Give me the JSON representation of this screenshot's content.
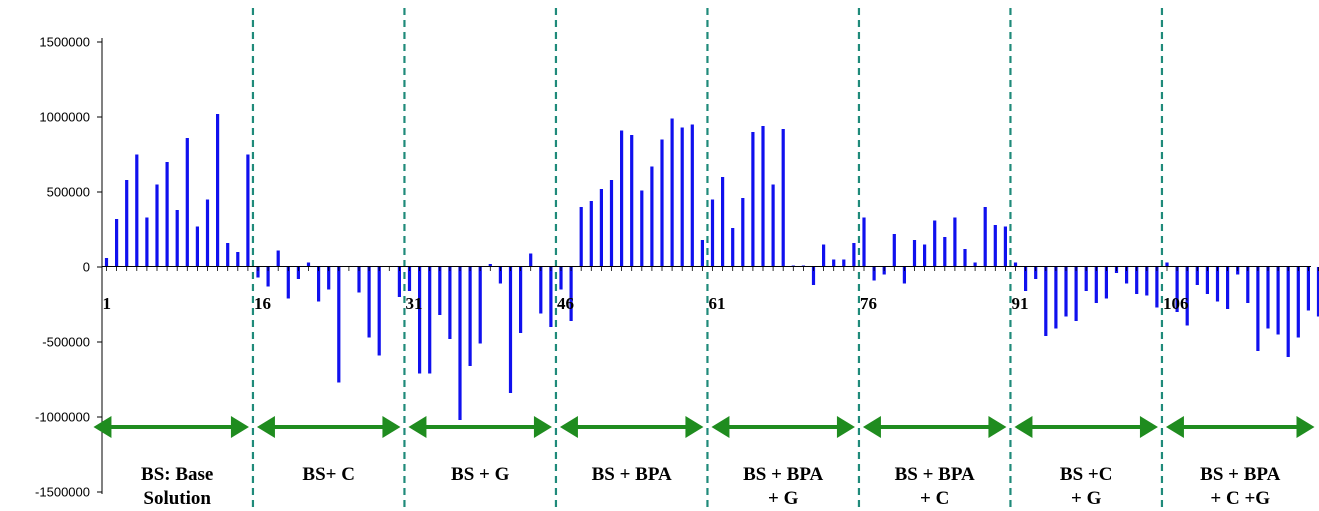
{
  "chart_data": {
    "type": "bar",
    "title": "",
    "xlabel": "",
    "ylabel": "",
    "ylim": [
      -1500000,
      1500000
    ],
    "yticks": [
      1500000,
      1000000,
      500000,
      0,
      -500000,
      -1000000,
      -1500000
    ],
    "ytick_labels": [
      "1500000",
      "1000000",
      "500000",
      "0",
      "-500000",
      "-1000000",
      "-1500000"
    ],
    "x_range": [
      1,
      121
    ],
    "xtick_values": [
      1,
      16,
      31,
      46,
      61,
      76,
      91,
      106
    ],
    "xtick_labels": [
      "1",
      "16",
      "31",
      "46",
      "61",
      "76",
      "91",
      "106"
    ],
    "grid": false,
    "legend": "none",
    "colors": {
      "bars": "#1010ee",
      "dividers": "#1f8a7a",
      "arrows": "#1f8c1f",
      "axis": "#000000"
    },
    "series": [
      {
        "values": [
          60000,
          320000,
          580000,
          750000,
          330000,
          550000,
          700000,
          380000,
          860000,
          270000,
          450000,
          1020000,
          160000,
          100000,
          750000,
          -70000,
          -130000,
          110000,
          -210000,
          -80000,
          30000,
          -230000,
          -150000,
          -770000,
          0,
          -170000,
          -470000,
          -590000,
          0,
          -200000,
          -160000,
          -710000,
          -710000,
          -320000,
          -480000,
          -1020000,
          -660000,
          -510000,
          20000,
          -110000,
          -840000,
          -440000,
          90000,
          -310000,
          -400000,
          -150000,
          -360000,
          400000,
          440000,
          520000,
          580000,
          910000,
          880000,
          510000,
          670000,
          850000,
          990000,
          930000,
          950000,
          180000,
          450000,
          600000,
          260000,
          460000,
          900000,
          940000,
          550000,
          920000,
          10000,
          10000,
          -120000,
          150000,
          50000,
          50000,
          160000,
          330000,
          -90000,
          -50000,
          220000,
          -110000,
          180000,
          150000,
          310000,
          200000,
          330000,
          120000,
          30000,
          400000,
          280000,
          270000,
          30000,
          -160000,
          -80000,
          -460000,
          -410000,
          -330000,
          -360000,
          -160000,
          -240000,
          -210000,
          -40000,
          -110000,
          -180000,
          -190000,
          -270000,
          30000,
          -300000,
          -390000,
          -120000,
          -180000,
          -230000,
          -280000,
          -50000,
          -240000,
          -560000,
          -410000,
          -450000,
          -600000,
          -470000,
          -290000,
          -330000
        ]
      }
    ],
    "dividers_at": [
      15.5,
      30.5,
      45.5,
      60.5,
      75.5,
      90.5,
      105.5
    ],
    "sections": [
      {
        "lines": [
          "BS: Base",
          "Solution"
        ],
        "from": 0.5,
        "to": 15.5
      },
      {
        "lines": [
          "BS+ C"
        ],
        "from": 15.5,
        "to": 30.5
      },
      {
        "lines": [
          "BS + G"
        ],
        "from": 30.5,
        "to": 45.5
      },
      {
        "lines": [
          "BS + BPA"
        ],
        "from": 45.5,
        "to": 60.5
      },
      {
        "lines": [
          "BS + BPA",
          "+ G"
        ],
        "from": 60.5,
        "to": 75.5
      },
      {
        "lines": [
          "BS + BPA",
          "+ C"
        ],
        "from": 75.5,
        "to": 90.5
      },
      {
        "lines": [
          "BS +C",
          "+ G"
        ],
        "from": 90.5,
        "to": 105.5
      },
      {
        "lines": [
          "BS + BPA",
          "+ C +G"
        ],
        "from": 105.5,
        "to": 121
      }
    ]
  }
}
